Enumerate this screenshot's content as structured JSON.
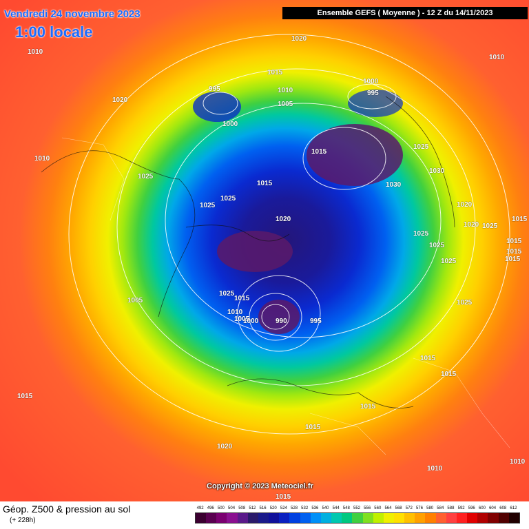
{
  "header": {
    "date": "Vendredi 24 novembre 2023",
    "time": "1:00 locale",
    "run": "Ensemble GEFS  ( Moyenne )  -  12 Z du 14/11/2023"
  },
  "isobars": [
    {
      "label": "1010"
    },
    {
      "label": "1020"
    },
    {
      "label": "1010"
    },
    {
      "label": "1020"
    },
    {
      "label": "1015"
    },
    {
      "label": "995"
    },
    {
      "label": "1010"
    },
    {
      "label": "1005"
    },
    {
      "label": "1000"
    },
    {
      "label": "995"
    },
    {
      "label": "1000"
    },
    {
      "label": "1010"
    },
    {
      "label": "1025"
    },
    {
      "label": "1015"
    },
    {
      "label": "1025"
    },
    {
      "label": "1025"
    },
    {
      "label": "1015"
    },
    {
      "label": "1030"
    },
    {
      "label": "1025"
    },
    {
      "label": "1030"
    },
    {
      "label": "1020"
    },
    {
      "label": "1020"
    },
    {
      "label": "1025"
    },
    {
      "label": "1015"
    },
    {
      "label": "1025"
    },
    {
      "label": "1025"
    },
    {
      "label": "1025"
    },
    {
      "label": "1015"
    },
    {
      "label": "1005"
    },
    {
      "label": "1020"
    },
    {
      "label": "1025"
    },
    {
      "label": "1015"
    },
    {
      "label": "1010"
    },
    {
      "label": "1005"
    },
    {
      "label": "1000"
    },
    {
      "label": "990"
    },
    {
      "label": "995"
    },
    {
      "label": "1025"
    },
    {
      "label": "1015"
    },
    {
      "label": "1015"
    },
    {
      "label": "1015"
    },
    {
      "label": "1015"
    },
    {
      "label": "1020"
    },
    {
      "label": "1010"
    },
    {
      "label": "1010"
    },
    {
      "label": "1015"
    },
    {
      "label": "1015"
    },
    {
      "label": "1015"
    },
    {
      "label": "1015"
    }
  ],
  "copyright": "Copyright © 2023 Meteociel.fr",
  "legend": {
    "title": "Géop. Z500 & pression au sol",
    "subtitle": "(+ 228h)",
    "ticks": [
      "492",
      "496",
      "500",
      "504",
      "508",
      "512",
      "516",
      "520",
      "524",
      "528",
      "532",
      "536",
      "540",
      "544",
      "548",
      "552",
      "556",
      "560",
      "564",
      "568",
      "572",
      "576",
      "580",
      "584",
      "588",
      "592",
      "596",
      "600",
      "604",
      "608",
      "612"
    ],
    "colors": [
      "#3b0030",
      "#5a0050",
      "#7a0070",
      "#8a1090",
      "#5a1a8a",
      "#2a1a6a",
      "#1a1a8a",
      "#10109a",
      "#0a20c0",
      "#0040e0",
      "#0060f0",
      "#0090f8",
      "#00b0e0",
      "#00c8b0",
      "#00c880",
      "#40d040",
      "#80e020",
      "#c0f000",
      "#f0f000",
      "#ffe000",
      "#ffc000",
      "#ffa000",
      "#ff8000",
      "#ff6030",
      "#ff4040",
      "#ff2020",
      "#e00000",
      "#b00000",
      "#800000",
      "#500000",
      "#200000"
    ]
  }
}
